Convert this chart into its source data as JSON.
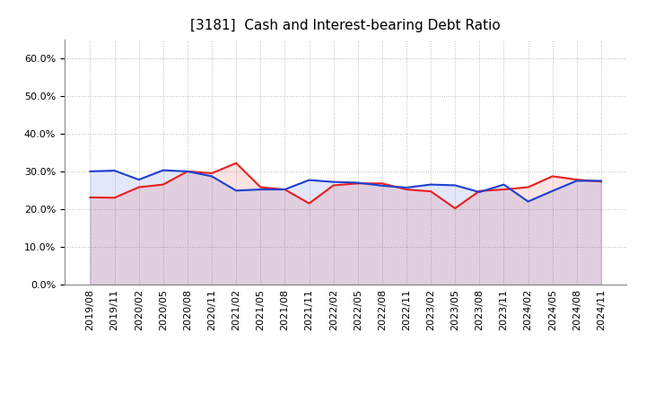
{
  "x_labels": [
    "2019/08",
    "2019/11",
    "2020/02",
    "2020/05",
    "2020/08",
    "2020/11",
    "2021/02",
    "2021/05",
    "2021/08",
    "2021/11",
    "2022/02",
    "2022/05",
    "2022/08",
    "2022/11",
    "2023/02",
    "2023/05",
    "2023/08",
    "2023/11",
    "2024/02",
    "2024/05",
    "2024/08",
    "2024/11"
  ],
  "cash": [
    0.231,
    0.23,
    0.258,
    0.265,
    0.3,
    0.295,
    0.322,
    0.258,
    0.252,
    0.215,
    0.263,
    0.268,
    0.268,
    0.252,
    0.247,
    0.202,
    0.248,
    0.252,
    0.258,
    0.287,
    0.278,
    0.273
  ],
  "debt": [
    0.3,
    0.302,
    0.278,
    0.303,
    0.3,
    0.287,
    0.249,
    0.252,
    0.252,
    0.277,
    0.272,
    0.27,
    0.262,
    0.257,
    0.265,
    0.263,
    0.245,
    0.265,
    0.22,
    0.248,
    0.275,
    0.275
  ],
  "cash_color": "#e82020",
  "debt_color": "#2040d0",
  "ylim": [
    0.0,
    0.65
  ],
  "yticks": [
    0.0,
    0.1,
    0.2,
    0.3,
    0.4,
    0.5,
    0.6
  ],
  "background_color": "#ffffff",
  "grid_color": "#aaaaaa",
  "title_fontsize": 11,
  "tick_fontsize": 8,
  "legend_fontsize": 9
}
